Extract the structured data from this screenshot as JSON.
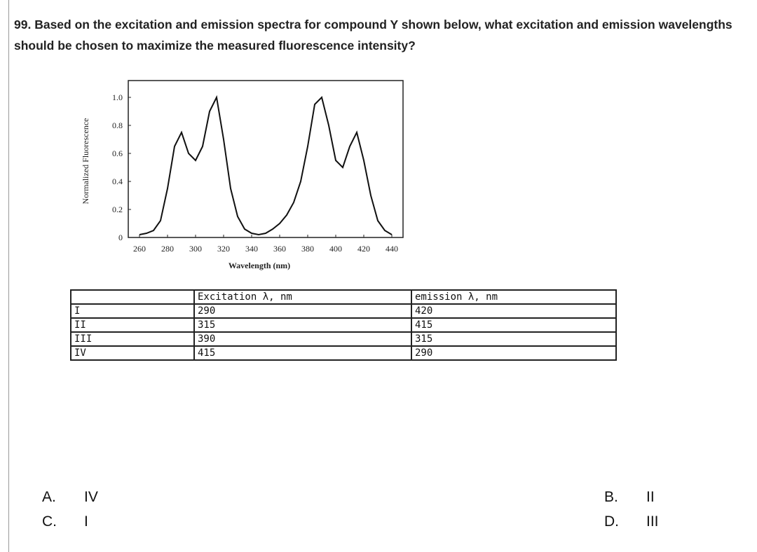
{
  "question": {
    "number": "99.",
    "text": "Based on the excitation and emission spectra for compound Y shown below, what excitation and emission wavelengths should be chosen to maximize the measured fluorescence intensity?"
  },
  "chart_data": {
    "type": "line",
    "xlabel": "Wavelength (nm)",
    "ylabel": "Normalized Fluorescence",
    "x": [
      260,
      265,
      270,
      275,
      280,
      285,
      290,
      295,
      300,
      305,
      310,
      315,
      320,
      325,
      330,
      335,
      340,
      345,
      350,
      355,
      360,
      365,
      370,
      375,
      380,
      385,
      390,
      395,
      400,
      405,
      410,
      415,
      420,
      425,
      430,
      435,
      440
    ],
    "series": [
      {
        "color": "#111111",
        "values": [
          0.02,
          0.03,
          0.05,
          0.12,
          0.35,
          0.65,
          0.75,
          0.6,
          0.55,
          0.65,
          0.9,
          1.0,
          0.7,
          0.35,
          0.15,
          0.06,
          0.03,
          0.02,
          0.03,
          0.06,
          0.1,
          0.16,
          0.25,
          0.4,
          0.65,
          0.95,
          1.0,
          0.8,
          0.55,
          0.5,
          0.65,
          0.75,
          0.55,
          0.3,
          0.12,
          0.05,
          0.02
        ]
      }
    ],
    "xlim": [
      252,
      448
    ],
    "ylim": [
      0,
      1.12
    ],
    "xticks": [
      260,
      280,
      300,
      320,
      340,
      360,
      380,
      400,
      420,
      440
    ],
    "yticks": [
      0,
      0.2,
      0.4,
      0.6,
      0.8,
      {
        "value": 1,
        "label": "1.0"
      }
    ]
  },
  "table": {
    "header": [
      "Excitation λ, nm",
      "emission λ, nm"
    ],
    "rows": [
      [
        "I",
        "290",
        "420"
      ],
      [
        "II",
        "315",
        "415"
      ],
      [
        "III",
        "390",
        "315"
      ],
      [
        "IV",
        "415",
        "290"
      ]
    ]
  },
  "choices": [
    {
      "letter": "A.",
      "text": "IV"
    },
    {
      "letter": "B.",
      "text": "II"
    },
    {
      "letter": "C.",
      "text": "I"
    },
    {
      "letter": "D.",
      "text": "III"
    }
  ]
}
